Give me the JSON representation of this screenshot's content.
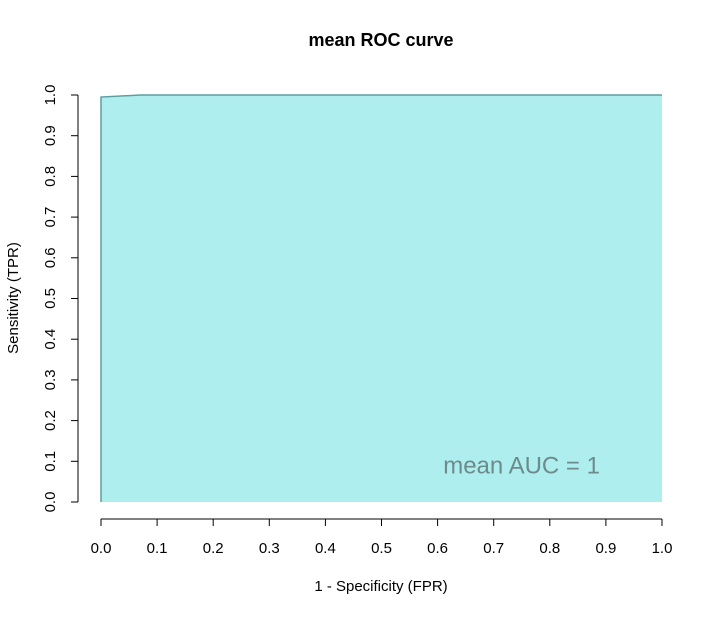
{
  "chart_data": {
    "type": "area",
    "title": "mean ROC curve",
    "xlabel": "1 - Specificity (FPR)",
    "ylabel": "Sensitivity (TPR)",
    "xlim": [
      0,
      1
    ],
    "ylim": [
      0,
      1
    ],
    "x_ticks": [
      0.0,
      0.1,
      0.2,
      0.3,
      0.4,
      0.5,
      0.6,
      0.7,
      0.8,
      0.9,
      1.0
    ],
    "y_ticks": [
      0.0,
      0.1,
      0.2,
      0.3,
      0.4,
      0.5,
      0.6,
      0.7,
      0.8,
      0.9,
      1.0
    ],
    "x_tick_labels": [
      "0.0",
      "0.1",
      "0.2",
      "0.3",
      "0.4",
      "0.5",
      "0.6",
      "0.7",
      "0.8",
      "0.9",
      "1.0"
    ],
    "y_tick_labels": [
      "0.0",
      "0.1",
      "0.2",
      "0.3",
      "0.4",
      "0.5",
      "0.6",
      "0.7",
      "0.8",
      "0.9",
      "1.0"
    ],
    "grid": false,
    "series": [
      {
        "x": [
          0.0,
          0.0,
          0.07,
          1.0
        ],
        "y": [
          0.0,
          0.995,
          1.0,
          1.0
        ]
      }
    ],
    "annotation": "mean AUC = 1",
    "annotation_position": [
      0.61,
      0.09
    ],
    "fill_color": "#AFEEEE",
    "line_color": "#5F9EA0",
    "annotation_color": "#6E8B8B"
  }
}
